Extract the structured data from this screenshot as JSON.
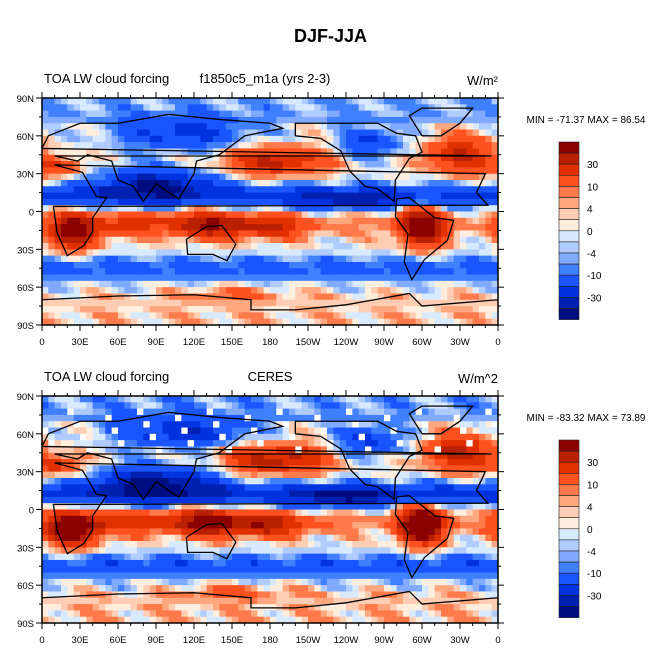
{
  "title": "DJF-JJA",
  "chart_data": [
    {
      "type": "heatmap",
      "left_title": "TOA LW cloud forcing",
      "center_title": "f1850c5_m1a (yrs 2-3)",
      "units": "W/m²",
      "min_max": "MIN = -71.37 MAX =  86.54",
      "missing": false,
      "scale": 1.0
    },
    {
      "type": "heatmap",
      "left_title": "TOA LW cloud forcing",
      "center_title": "CERES",
      "units": "W/m^2",
      "min_max": "MIN = -83.32 MAX =  73.89",
      "missing": true,
      "scale": 1.15
    }
  ],
  "x_ticks": [
    "0",
    "30E",
    "60E",
    "90E",
    "120E",
    "150E",
    "180",
    "150W",
    "120W",
    "90W",
    "60W",
    "30W",
    "0"
  ],
  "y_ticks": [
    "90N",
    "60N",
    "30N",
    "0",
    "30S",
    "60S",
    "90S"
  ],
  "levels": [
    -40,
    -30,
    -20,
    -10,
    -6,
    -4,
    -2,
    0,
    2,
    4,
    6,
    10,
    20,
    30,
    40
  ],
  "colorbar_labels": [
    {
      "level": 30,
      "text": "30"
    },
    {
      "level": 10,
      "text": "10"
    },
    {
      "level": 4,
      "text": "4"
    },
    {
      "level": 0,
      "text": "0"
    },
    {
      "level": -4,
      "text": "-4"
    },
    {
      "level": -10,
      "text": "-10"
    },
    {
      "level": -30,
      "text": "-30"
    }
  ],
  "colors": [
    "#000d80",
    "#0020b0",
    "#0033e0",
    "#1a55ff",
    "#4080ff",
    "#80aaff",
    "#b0ccff",
    "#d8eaff",
    "#ffeedd",
    "#ffcdb4",
    "#ffa880",
    "#ff7a4a",
    "#ff5020",
    "#e03000",
    "#b82000",
    "#8b0000"
  ],
  "field_blobs": [
    {
      "lon": 25,
      "lat": -15,
      "amp": 45,
      "slon": 20,
      "slat": 14
    },
    {
      "lon": 300,
      "lat": -12,
      "amp": 50,
      "slon": 18,
      "slat": 15
    },
    {
      "lon": 130,
      "lat": -10,
      "amp": 35,
      "slon": 30,
      "slat": 11
    },
    {
      "lon": 180,
      "lat": -12,
      "amp": 25,
      "slon": 30,
      "slat": 9
    },
    {
      "lon": 70,
      "lat": -10,
      "amp": 18,
      "slon": 25,
      "slat": 9
    },
    {
      "lon": 90,
      "lat": 22,
      "amp": -35,
      "slon": 45,
      "slat": 12
    },
    {
      "lon": 185,
      "lat": 40,
      "amp": 32,
      "slon": 40,
      "slat": 11
    },
    {
      "lon": 330,
      "lat": 45,
      "amp": 30,
      "slon": 28,
      "slat": 14
    },
    {
      "lon": 15,
      "lat": 35,
      "amp": 20,
      "slon": 18,
      "slat": 8
    },
    {
      "lon": 110,
      "lat": 62,
      "amp": -25,
      "slon": 50,
      "slat": 12
    },
    {
      "lon": 260,
      "lat": 55,
      "amp": -20,
      "slon": 25,
      "slat": 12
    },
    {
      "lon": 240,
      "lat": 10,
      "amp": -18,
      "slon": 40,
      "slat": 8
    },
    {
      "lon": 150,
      "lat": -65,
      "amp": 10,
      "slon": 40,
      "slat": 6
    }
  ]
}
